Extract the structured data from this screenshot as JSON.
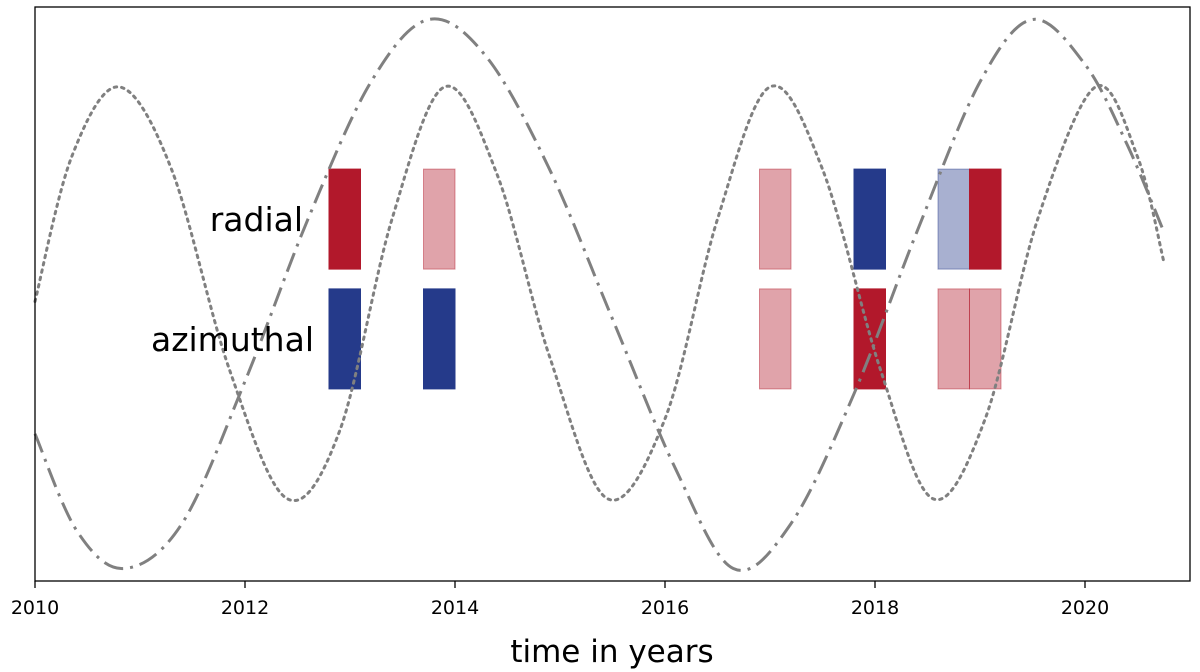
{
  "chart_data": {
    "type": "line",
    "title": "",
    "xlabel": "time in years",
    "ylabel": "",
    "xlim": [
      2010,
      2021
    ],
    "ylim": [
      -1.15,
      1.15
    ],
    "xticks": [
      2010,
      2012,
      2014,
      2016,
      2018,
      2020
    ],
    "grid": false,
    "legend": "none",
    "series": [
      {
        "style": "dashdot",
        "color": "#808080",
        "x": [
          2010.0,
          2010.4,
          2010.85,
          2011.4,
          2012.0,
          2012.6,
          2013.2,
          2013.75,
          2014.3,
          2014.9,
          2015.5,
          2016.1,
          2016.65,
          2017.2,
          2017.8,
          2018.4,
          2019.0,
          2019.5,
          2020.0,
          2020.4,
          2020.75
        ],
        "y": [
          -0.56,
          -0.95,
          -1.1,
          -0.92,
          -0.35,
          0.3,
          0.85,
          1.1,
          0.95,
          0.5,
          -0.1,
          -0.7,
          -1.1,
          -0.92,
          -0.4,
          0.25,
          0.85,
          1.1,
          0.92,
          0.6,
          0.25
        ]
      },
      {
        "style": "dotted",
        "color": "#808080",
        "x": [
          2010.0,
          2010.35,
          2010.8,
          2011.3,
          2011.85,
          2012.4,
          2012.9,
          2013.4,
          2013.9,
          2014.4,
          2014.9,
          2015.45,
          2016.0,
          2016.5,
          2017.0,
          2017.5,
          2018.05,
          2018.55,
          2019.05,
          2019.55,
          2020.1,
          2020.5,
          2020.75
        ],
        "y": [
          -0.03,
          0.55,
          0.83,
          0.5,
          -0.3,
          -0.82,
          -0.55,
          0.3,
          0.83,
          0.48,
          -0.25,
          -0.82,
          -0.5,
          0.3,
          0.83,
          0.5,
          -0.3,
          -0.82,
          -0.5,
          0.3,
          0.83,
          0.55,
          0.13
        ]
      }
    ],
    "rows": [
      {
        "label": "radial",
        "y_center": 0.3,
        "bars": [
          {
            "start": 2012.8,
            "end": 2013.1,
            "color": "#b2182b",
            "light": false
          },
          {
            "start": 2013.7,
            "end": 2014.0,
            "color": "#b2182b",
            "light": true
          },
          {
            "start": 2016.9,
            "end": 2017.2,
            "color": "#b2182b",
            "light": true
          },
          {
            "start": 2017.8,
            "end": 2018.1,
            "color": "#253a8a",
            "light": false
          },
          {
            "start": 2018.6,
            "end": 2018.9,
            "color": "#253a8a",
            "light": true
          },
          {
            "start": 2018.9,
            "end": 2019.2,
            "color": "#b2182b",
            "light": false
          }
        ]
      },
      {
        "label": "azimuthal",
        "y_center": -0.18,
        "bars": [
          {
            "start": 2012.8,
            "end": 2013.1,
            "color": "#253a8a",
            "light": false
          },
          {
            "start": 2013.7,
            "end": 2014.0,
            "color": "#253a8a",
            "light": false
          },
          {
            "start": 2016.9,
            "end": 2017.2,
            "color": "#b2182b",
            "light": true
          },
          {
            "start": 2017.8,
            "end": 2018.1,
            "color": "#b2182b",
            "light": false
          },
          {
            "start": 2018.6,
            "end": 2018.9,
            "color": "#b2182b",
            "light": true
          },
          {
            "start": 2018.9,
            "end": 2019.2,
            "color": "#b2182b",
            "light": true
          }
        ]
      }
    ]
  }
}
